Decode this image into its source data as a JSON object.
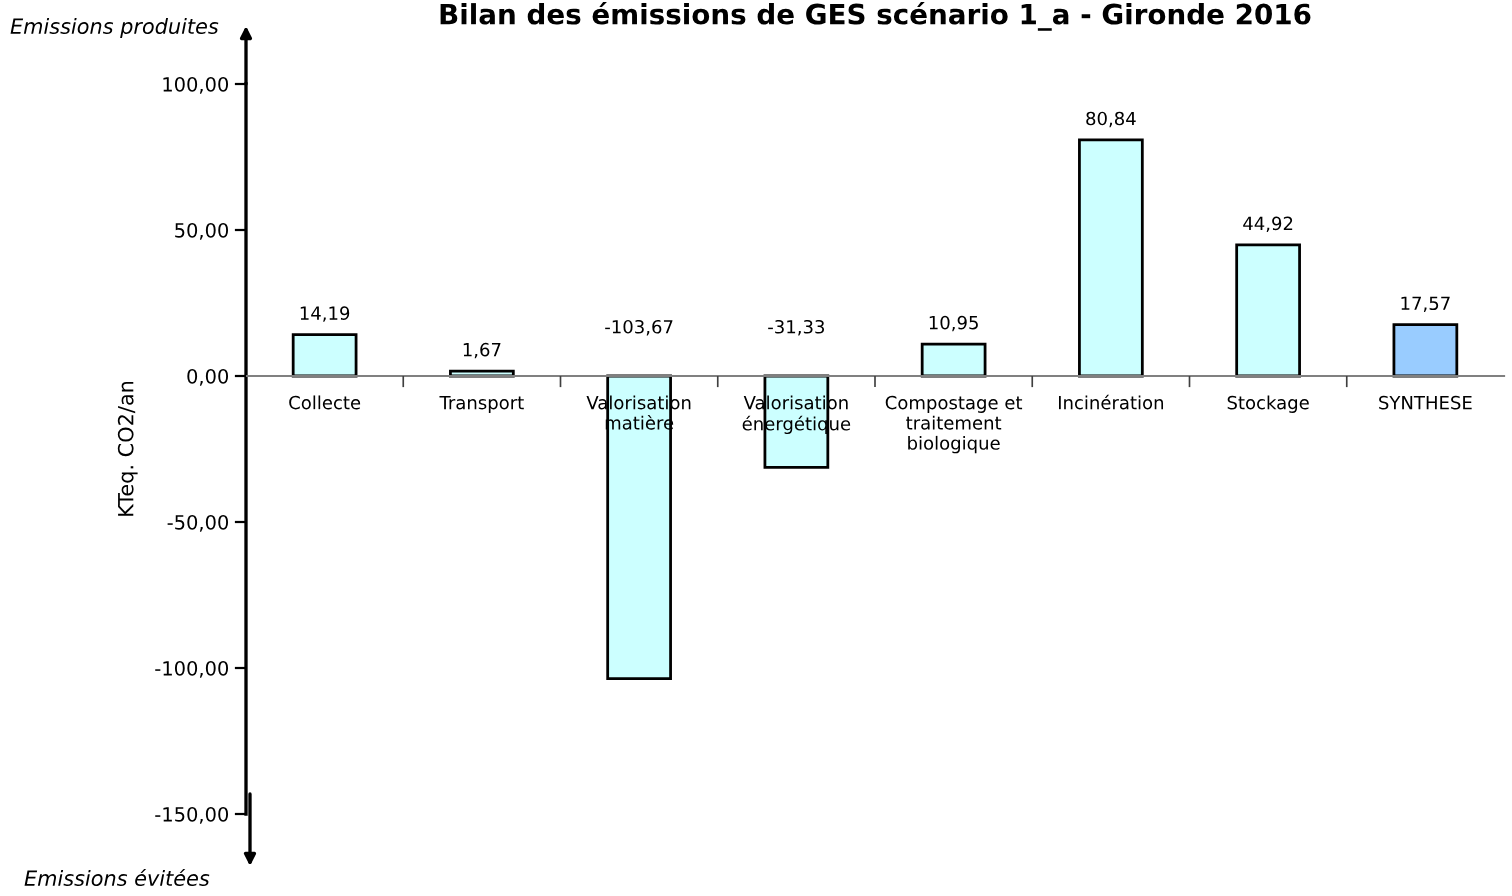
{
  "chart_data": {
    "type": "bar",
    "title": "Bilan des émissions de GES scénario 1_a - Gironde 2016",
    "ylabel": "KTeq. CO2/an",
    "categories": [
      "Collecte",
      "Transport",
      "Valorisation\nmatière",
      "Valorisation\nénergétique",
      "Compostage et\ntraitement\nbiologique",
      "Incinération",
      "Stockage",
      "SYNTHESE"
    ],
    "values": [
      14.19,
      1.67,
      -103.67,
      -31.33,
      10.95,
      80.84,
      44.92,
      17.57
    ],
    "value_labels": [
      "14,19",
      "1,67",
      "-103,67",
      "-31,33",
      "10,95",
      "80,84",
      "44,92",
      "17,57"
    ],
    "colors": [
      "#ccffff",
      "#ccffff",
      "#ccffff",
      "#ccffff",
      "#ccffff",
      "#ccffff",
      "#ccffff",
      "#99ccff"
    ],
    "ylim": [
      -150,
      100
    ],
    "yticks": [
      {
        "value": -150,
        "label": "-150,00"
      },
      {
        "value": -100,
        "label": "-100,00"
      },
      {
        "value": -50,
        "label": "-50,00"
      },
      {
        "value": 0,
        "label": "0,00"
      },
      {
        "value": 50,
        "label": "50,00"
      },
      {
        "value": 100,
        "label": "100,00"
      }
    ],
    "annotations": [
      "Emissions produites",
      "Emissions évitées"
    ]
  }
}
